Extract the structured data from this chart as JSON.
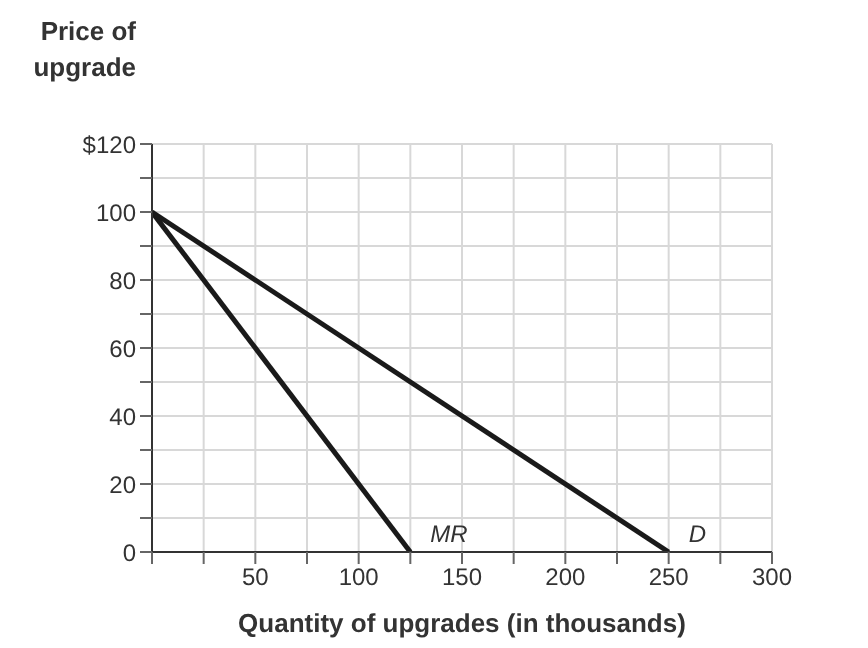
{
  "chart_data": {
    "type": "line",
    "xlabel": "Quantity of upgrades (in thousands)",
    "ylabel": "Price of upgrade",
    "series": [
      {
        "name": "MR",
        "color": "#1a1a1a",
        "x": [
          0,
          125
        ],
        "values": [
          100,
          0
        ]
      },
      {
        "name": "D",
        "color": "#1a1a1a",
        "x": [
          0,
          250
        ],
        "values": [
          100,
          0
        ]
      }
    ],
    "xlim": [
      0,
      300
    ],
    "ylim": [
      0,
      120
    ],
    "xticks": [
      {
        "value": 0,
        "label": null
      },
      {
        "value": 25,
        "label": null
      },
      50,
      {
        "value": 75,
        "label": null
      },
      100,
      {
        "value": 125,
        "label": null
      },
      150,
      {
        "value": 175,
        "label": null
      },
      200,
      {
        "value": 225,
        "label": null
      },
      250,
      {
        "value": 275,
        "label": null
      },
      300
    ],
    "yticks": [
      0,
      {
        "value": 10,
        "label": null
      },
      20,
      {
        "value": 30,
        "label": null
      },
      40,
      {
        "value": 50,
        "label": null
      },
      60,
      {
        "value": 70,
        "label": null
      },
      80,
      {
        "value": 90,
        "label": null
      },
      100,
      {
        "value": 110,
        "label": null
      },
      {
        "value": 120,
        "label": "$120"
      }
    ],
    "grid": true,
    "marker": "none",
    "line_style": "solid",
    "legend": false
  }
}
